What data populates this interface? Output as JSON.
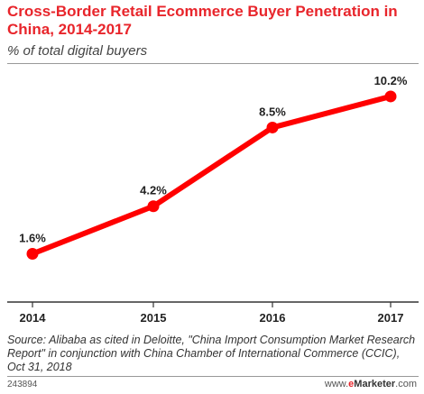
{
  "header": {
    "title": "Cross-Border Retail Ecommerce Buyer Penetration in China, 2014-2017",
    "subtitle": "% of total digital buyers"
  },
  "chart_data": {
    "type": "line",
    "categories": [
      "2014",
      "2015",
      "2016",
      "2017"
    ],
    "values": [
      1.6,
      4.2,
      8.5,
      10.2
    ],
    "value_labels": [
      "1.6%",
      "4.2%",
      "8.5%",
      "10.2%"
    ],
    "title": "Cross-Border Retail Ecommerce Buyer Penetration in China, 2014-2017",
    "ylabel": "% of total digital buyers",
    "ylim": [
      0,
      11.5
    ],
    "grid": false,
    "line_color": "#ff0000"
  },
  "footer": {
    "source": "Source: Alibaba as cited in Deloitte, \"China Import Consumption Market Research Report\" in conjunction with China Chamber of International Commerce (CCIC), Oct 31, 2018",
    "chart_id": "243894",
    "brand_prefix": "www.",
    "brand_e": "e",
    "brand_name": "Marketer",
    "brand_suffix": ".com"
  },
  "colors": {
    "title": "#e8252b",
    "line": "#ff0000"
  }
}
